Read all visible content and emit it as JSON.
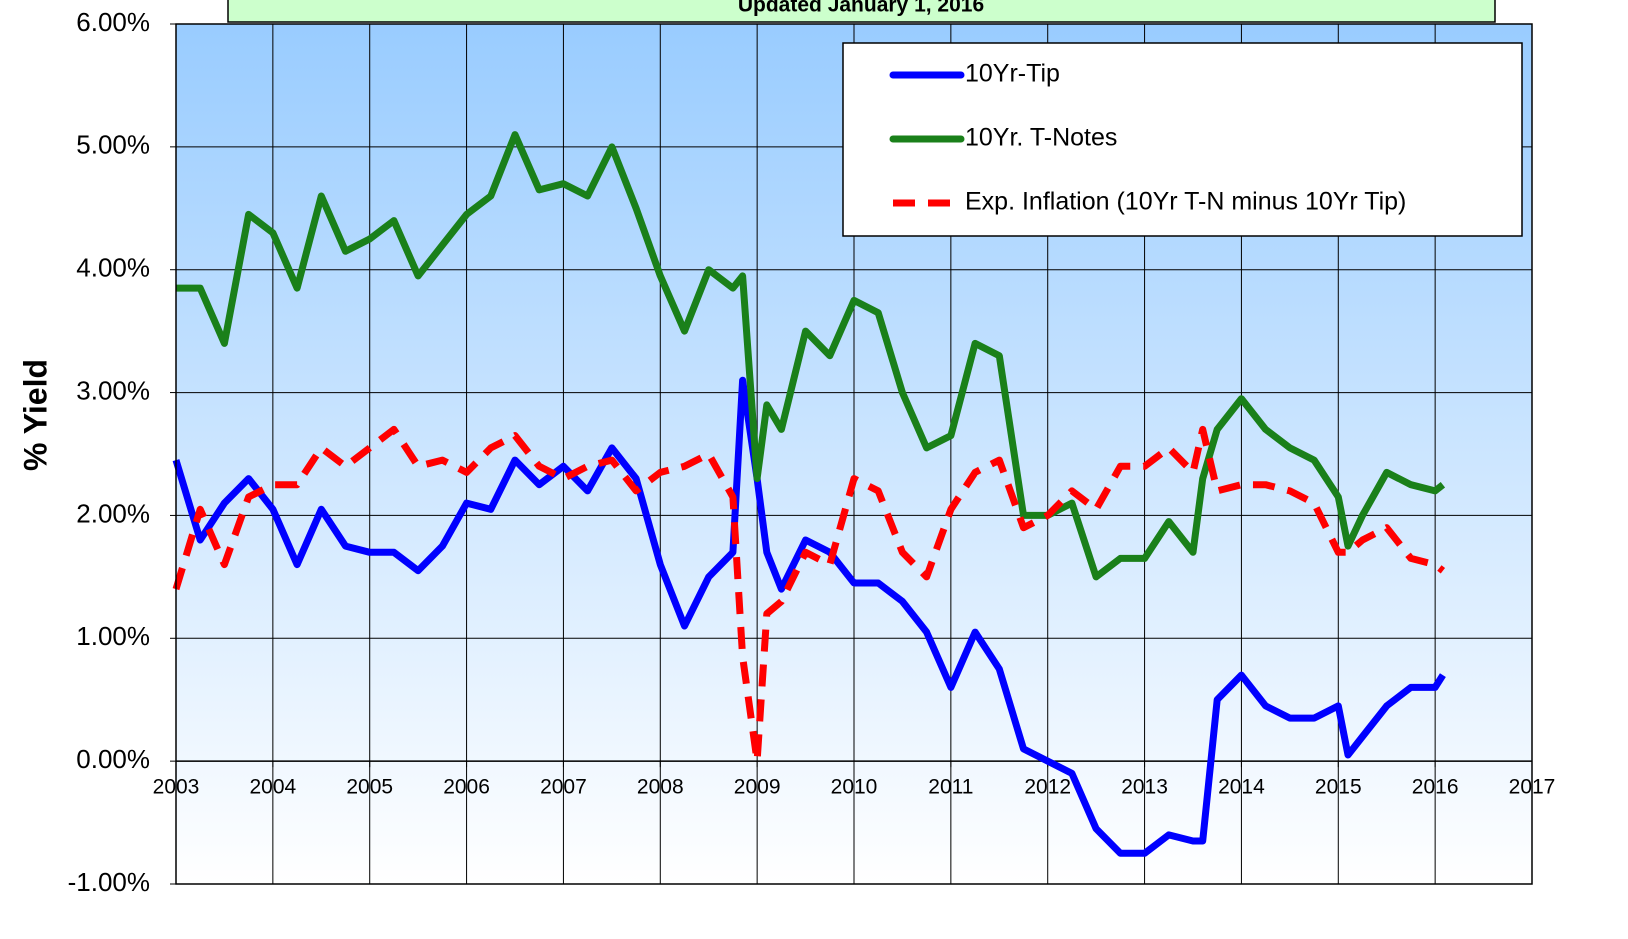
{
  "chart_data": {
    "type": "line",
    "subtitle": "Updated January 1, 2016",
    "ylabel": "% Yield",
    "x": [
      2003.0,
      2003.25,
      2003.5,
      2003.75,
      2004.0,
      2004.25,
      2004.5,
      2004.75,
      2005.0,
      2005.25,
      2005.5,
      2005.75,
      2006.0,
      2006.25,
      2006.5,
      2006.75,
      2007.0,
      2007.25,
      2007.5,
      2007.75,
      2008.0,
      2008.25,
      2008.5,
      2008.75,
      2008.85,
      2009.0,
      2009.1,
      2009.25,
      2009.5,
      2009.75,
      2010.0,
      2010.25,
      2010.5,
      2010.75,
      2011.0,
      2011.25,
      2011.5,
      2011.75,
      2012.0,
      2012.25,
      2012.5,
      2012.75,
      2013.0,
      2013.25,
      2013.5,
      2013.6,
      2013.75,
      2014.0,
      2014.25,
      2014.5,
      2014.75,
      2015.0,
      2015.1,
      2015.25,
      2015.5,
      2015.75,
      2016.0,
      2016.08
    ],
    "series": [
      {
        "name": "10Yr-Tip",
        "color": "#0000ff",
        "dashed": false,
        "values": [
          2.45,
          1.8,
          2.1,
          2.3,
          2.05,
          1.6,
          2.05,
          1.75,
          1.7,
          1.7,
          1.55,
          1.75,
          2.1,
          2.05,
          2.45,
          2.25,
          2.4,
          2.2,
          2.55,
          2.3,
          1.6,
          1.1,
          1.5,
          1.7,
          3.1,
          2.3,
          1.7,
          1.4,
          1.8,
          1.7,
          1.45,
          1.45,
          1.3,
          1.05,
          0.6,
          1.05,
          0.75,
          0.1,
          0.0,
          -0.1,
          -0.55,
          -0.75,
          -0.75,
          -0.6,
          -0.65,
          -0.65,
          0.5,
          0.7,
          0.45,
          0.35,
          0.35,
          0.45,
          0.05,
          0.2,
          0.45,
          0.6,
          0.6,
          0.7
        ]
      },
      {
        "name": "10Yr. T-Notes",
        "color": "#1a801a",
        "dashed": false,
        "values": [
          3.85,
          3.85,
          3.4,
          4.45,
          4.3,
          3.85,
          4.6,
          4.15,
          4.25,
          4.4,
          3.95,
          4.2,
          4.45,
          4.6,
          5.1,
          4.65,
          4.7,
          4.6,
          5.0,
          4.5,
          3.95,
          3.5,
          4.0,
          3.85,
          3.95,
          2.3,
          2.9,
          2.7,
          3.5,
          3.3,
          3.75,
          3.65,
          3.0,
          2.55,
          2.65,
          3.4,
          3.3,
          2.0,
          2.0,
          2.1,
          1.5,
          1.65,
          1.65,
          1.95,
          1.7,
          2.3,
          2.7,
          2.95,
          2.7,
          2.55,
          2.45,
          2.15,
          1.75,
          2.0,
          2.35,
          2.25,
          2.2,
          2.25
        ]
      },
      {
        "name": "Exp. Inflation (10Yr T-N minus 10Yr Tip)",
        "color": "#ff0000",
        "dashed": true,
        "values": [
          1.4,
          2.05,
          1.6,
          2.15,
          2.25,
          2.25,
          2.55,
          2.4,
          2.55,
          2.7,
          2.4,
          2.45,
          2.35,
          2.55,
          2.65,
          2.4,
          2.3,
          2.4,
          2.45,
          2.2,
          2.35,
          2.4,
          2.5,
          2.15,
          0.85,
          0.0,
          1.2,
          1.3,
          1.7,
          1.6,
          2.3,
          2.2,
          1.7,
          1.5,
          2.05,
          2.35,
          2.45,
          1.9,
          2.0,
          2.2,
          2.05,
          2.4,
          2.4,
          2.55,
          2.35,
          2.7,
          2.2,
          2.25,
          2.25,
          2.2,
          2.1,
          1.7,
          1.7,
          1.8,
          1.9,
          1.65,
          1.6,
          1.55
        ]
      }
    ],
    "xlim": [
      2003,
      2017
    ],
    "xticks": [
      2003,
      2004,
      2005,
      2006,
      2007,
      2008,
      2009,
      2010,
      2011,
      2012,
      2013,
      2014,
      2015,
      2016,
      2017
    ],
    "ylim": [
      -1,
      6
    ],
    "yticks": [
      {
        "value": -1,
        "label": "-1.00%"
      },
      {
        "value": 0,
        "label": "0.00%"
      },
      {
        "value": 1,
        "label": "1.00%"
      },
      {
        "value": 2,
        "label": "2.00%"
      },
      {
        "value": 3,
        "label": "3.00%"
      },
      {
        "value": 4,
        "label": "4.00%"
      },
      {
        "value": 5,
        "label": "5.00%"
      },
      {
        "value": 6,
        "label": "6.00%"
      }
    ],
    "grid": true,
    "legend": "upper right"
  }
}
